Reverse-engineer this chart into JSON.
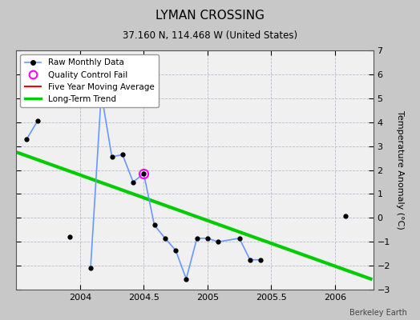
{
  "title": "LYMAN CROSSING",
  "subtitle": "37.160 N, 114.468 W (United States)",
  "ylabel": "Temperature Anomaly (°C)",
  "credit": "Berkeley Earth",
  "xlim": [
    2003.5,
    2006.3
  ],
  "ylim": [
    -3,
    7
  ],
  "yticks": [
    -3,
    -2,
    -1,
    0,
    1,
    2,
    3,
    4,
    5,
    6,
    7
  ],
  "xticks": [
    2004,
    2004.5,
    2005,
    2005.5,
    2006
  ],
  "background_color": "#c8c8c8",
  "plot_background": "#f0f0f0",
  "raw_x": [
    2003.583,
    2003.667,
    2003.917,
    2004.083,
    2004.167,
    2004.25,
    2004.333,
    2004.417,
    2004.5,
    2004.583,
    2004.667,
    2004.75,
    2004.833,
    2004.917,
    2005.0,
    2005.083,
    2005.25,
    2005.333,
    2005.417,
    2006.083
  ],
  "raw_y": [
    3.3,
    4.05,
    -0.8,
    -2.1,
    5.2,
    2.55,
    2.65,
    1.5,
    1.85,
    -0.3,
    -0.85,
    -1.35,
    -2.55,
    -0.85,
    -0.85,
    -1.0,
    -0.85,
    -1.75,
    -1.75,
    0.08
  ],
  "connected_segment1": [
    0,
    1
  ],
  "connected_segment2": [
    3,
    4,
    5,
    6,
    7,
    8,
    9,
    10,
    11,
    12,
    13,
    14,
    15,
    16,
    17,
    18
  ],
  "qc_fail_x": [
    2004.5
  ],
  "qc_fail_y": [
    1.85
  ],
  "trend_x": [
    2003.5,
    2006.28
  ],
  "trend_y": [
    2.75,
    -2.55
  ],
  "raw_line_color": "#6699ff",
  "raw_marker_color": "#000000",
  "qc_color": "#ff00ff",
  "trend_color": "#00cc00",
  "ma_color": "#ff0000"
}
